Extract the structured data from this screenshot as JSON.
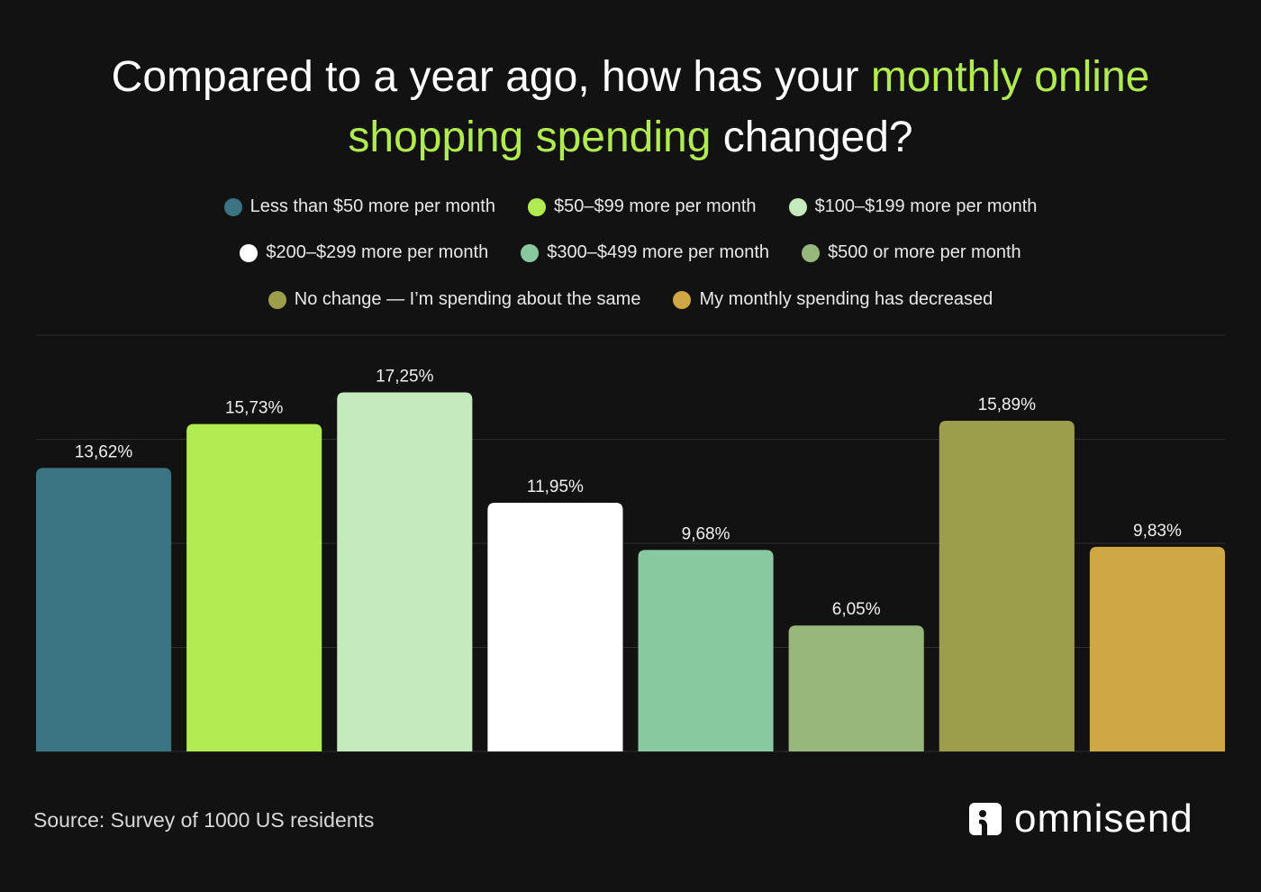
{
  "title": {
    "part1": "Compared to a year ago, how has your ",
    "highlight1": "monthly online",
    "highlight2": "shopping spending",
    "part2": " changed?"
  },
  "source": "Source: Survey of 1000 US residents",
  "brand": {
    "logo_text": "omnisend"
  },
  "chart_data": {
    "type": "bar",
    "title": "Compared to a year ago, how has your monthly online shopping spending changed?",
    "categories": [
      "Less than $50 more per month",
      "$50–$99 more per month",
      "$100–$199 more per month",
      "$200–$299 more per month",
      "$300–$499 more per month",
      "$500 or more per month",
      "No change — I’m spending about the same",
      "My monthly spending has decreased"
    ],
    "values": [
      13.62,
      15.73,
      17.25,
      11.95,
      9.68,
      6.05,
      15.89,
      9.83
    ],
    "data_labels": [
      "13,62%",
      "15,73%",
      "17,25%",
      "11,95%",
      "9,68%",
      "6,05%",
      "15,89%",
      "9,83%"
    ],
    "colors": [
      "#3a7482",
      "#b2eb51",
      "#c4eabe",
      "#ffffff",
      "#88c9a2",
      "#97b87a",
      "#9c9e4c",
      "#cfa745"
    ],
    "ylim": [
      0,
      20
    ],
    "grid": true,
    "gridline_step": 5,
    "axis_labels_shown": false,
    "legend_placement": "top",
    "legend_rows": [
      [
        0,
        1,
        2
      ],
      [
        3,
        4,
        5
      ],
      [
        6,
        7
      ]
    ]
  },
  "colors": {
    "background": "#121212",
    "accent": "#b2eb51",
    "gridline": "#2e2e2e"
  }
}
